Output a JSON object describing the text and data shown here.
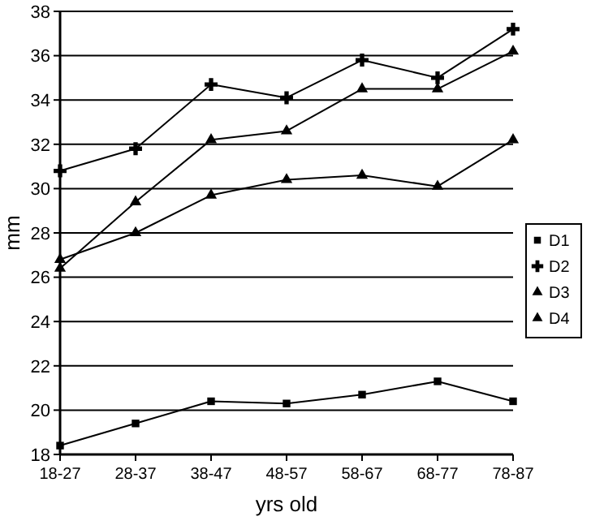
{
  "chart_data": {
    "type": "line",
    "xlabel": "yrs old",
    "ylabel": "mm",
    "categories": [
      "18-27",
      "28-37",
      "38-47",
      "48-57",
      "58-67",
      "68-77",
      "78-87"
    ],
    "series": [
      {
        "name": "D1",
        "color": "#000000",
        "marker": "square",
        "values": [
          18.4,
          19.4,
          20.4,
          20.3,
          20.7,
          21.3,
          20.4
        ]
      },
      {
        "name": "D2",
        "color": "#000000",
        "marker": "cross",
        "values": [
          30.8,
          31.8,
          34.7,
          34.1,
          35.8,
          35.0,
          37.2
        ]
      },
      {
        "name": "D3",
        "color": "#000000",
        "marker": "triangle",
        "values": [
          26.8,
          28.0,
          29.7,
          30.4,
          30.6,
          30.1,
          32.2
        ]
      },
      {
        "name": "D4",
        "color": "#000000",
        "marker": "triangle",
        "values": [
          26.4,
          29.4,
          32.2,
          32.6,
          34.5,
          34.5,
          36.2
        ]
      }
    ],
    "ylim": [
      18,
      38
    ],
    "yticks": [
      18,
      20,
      22,
      24,
      26,
      28,
      30,
      32,
      34,
      36,
      38
    ],
    "grid": "y",
    "legend": "right",
    "line_style": "solid"
  }
}
